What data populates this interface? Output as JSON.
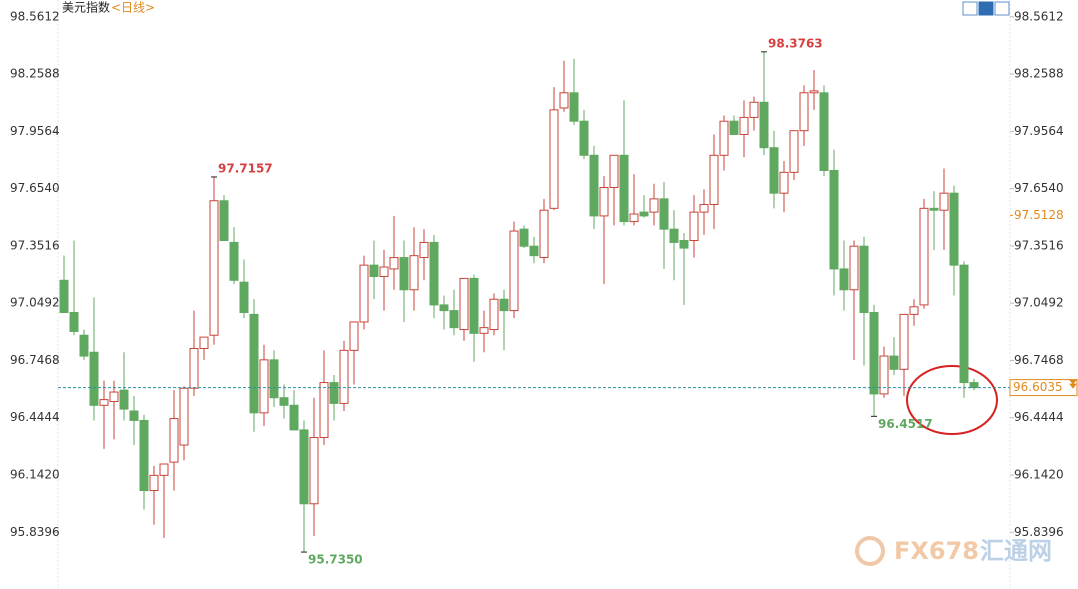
{
  "chart_data": {
    "type": "candlestick",
    "title": "美元指数",
    "subtitle": "<日线>",
    "ylim": [
      95.54,
      98.65
    ],
    "yticks": [
      98.5612,
      98.2588,
      97.9564,
      {
        "value": 97.654,
        "label": "97.6540"
      },
      97.3516,
      97.0492,
      96.7468,
      96.4444,
      {
        "value": 96.142,
        "label": "96.1420"
      },
      95.8396
    ],
    "up_color": "#c8433a",
    "down_color": "#5fa85f",
    "series": [
      {
        "open": [
          97.17,
          97.0,
          96.88,
          96.79,
          96.51,
          96.53,
          96.59,
          96.48,
          96.43,
          96.06,
          96.14,
          96.21,
          96.3,
          96.6,
          96.81,
          96.88,
          97.59,
          97.37,
          97.16,
          96.99,
          96.47,
          96.75,
          96.55,
          96.51,
          96.38,
          95.99,
          96.34,
          96.63,
          96.52,
          96.8,
          96.95,
          97.25,
          97.19,
          97.23,
          97.29,
          97.12,
          97.29,
          97.37,
          97.04,
          97.01,
          96.91,
          97.18,
          96.89,
          96.91,
          97.07,
          97.01,
          97.44,
          97.35,
          97.29,
          97.55,
          98.08,
          98.16,
          98.01,
          97.83,
          97.51,
          97.66,
          97.83,
          97.48,
          97.53,
          97.53,
          97.6,
          97.44,
          97.38,
          97.38,
          97.53,
          97.57,
          97.83,
          98.01,
          97.94,
          98.03,
          98.11,
          97.87,
          97.63,
          97.74,
          97.96,
          98.16,
          98.16,
          97.75,
          97.23,
          97.12,
          97.35,
          97.0,
          96.57,
          96.77,
          96.7,
          96.99,
          97.04,
          97.55,
          97.54,
          97.63,
          97.25,
          96.63
        ],
        "high": [
          97.3,
          97.38,
          96.91,
          97.08,
          96.64,
          96.64,
          96.79,
          96.56,
          96.46,
          96.19,
          96.2,
          96.59,
          96.61,
          97.01,
          96.87,
          97.7157,
          97.62,
          97.45,
          97.28,
          97.07,
          96.83,
          96.8,
          96.62,
          96.59,
          96.43,
          96.55,
          96.8,
          96.67,
          96.85,
          96.95,
          97.3,
          97.38,
          97.33,
          97.51,
          97.38,
          97.45,
          97.44,
          97.41,
          97.09,
          97.12,
          97.18,
          97.2,
          97.01,
          97.1,
          97.12,
          97.48,
          97.46,
          97.4,
          97.6,
          98.19,
          98.33,
          98.34,
          98.07,
          97.88,
          97.72,
          97.83,
          98.12,
          97.73,
          97.62,
          97.68,
          97.69,
          97.54,
          97.42,
          97.62,
          97.65,
          97.94,
          98.04,
          98.04,
          98.12,
          98.14,
          98.3763,
          97.96,
          97.8,
          97.96,
          98.2,
          98.28,
          98.2,
          97.86,
          97.38,
          97.38,
          97.4,
          97.04,
          96.82,
          96.87,
          96.99,
          97.07,
          97.6,
          97.64,
          97.76,
          97.67,
          97.27,
          96.65
        ],
        "low": [
          97.01,
          96.88,
          96.75,
          96.43,
          96.28,
          96.33,
          96.43,
          96.3,
          95.96,
          95.88,
          95.81,
          96.06,
          96.22,
          96.56,
          96.75,
          96.83,
          97.38,
          97.15,
          96.97,
          96.37,
          96.4,
          96.5,
          96.44,
          96.38,
          95.735,
          95.82,
          96.3,
          96.43,
          96.48,
          96.62,
          96.91,
          97.07,
          97.01,
          97.12,
          96.95,
          97.01,
          97.17,
          96.97,
          96.91,
          96.88,
          96.85,
          96.74,
          96.79,
          96.88,
          96.8,
          96.97,
          97.34,
          97.26,
          97.26,
          97.54,
          98.06,
          97.99,
          97.81,
          97.44,
          97.15,
          97.46,
          97.46,
          97.46,
          97.5,
          97.46,
          97.23,
          97.17,
          97.04,
          97.29,
          97.41,
          97.44,
          97.75,
          97.94,
          97.82,
          97.96,
          97.83,
          97.55,
          97.53,
          97.7,
          97.88,
          98.07,
          97.72,
          97.09,
          97.01,
          96.75,
          96.72,
          96.4517,
          96.55,
          96.67,
          96.56,
          96.93,
          97.02,
          97.33,
          97.33,
          97.09,
          96.55,
          96.59
        ],
        "close": [
          97.0,
          96.9,
          96.77,
          96.51,
          96.54,
          96.58,
          96.49,
          96.43,
          96.06,
          96.14,
          96.2,
          96.44,
          96.6,
          96.81,
          96.87,
          97.59,
          97.38,
          97.17,
          97.0,
          96.47,
          96.75,
          96.55,
          96.51,
          96.38,
          95.99,
          96.34,
          96.63,
          96.52,
          96.8,
          96.95,
          97.25,
          97.19,
          97.24,
          97.29,
          97.12,
          97.3,
          97.37,
          97.04,
          97.01,
          96.92,
          97.18,
          96.89,
          96.92,
          97.07,
          97.01,
          97.43,
          97.35,
          97.3,
          97.54,
          98.07,
          98.16,
          98.01,
          97.83,
          97.51,
          97.66,
          97.83,
          97.48,
          97.52,
          97.51,
          97.6,
          97.44,
          97.37,
          97.34,
          97.53,
          97.57,
          97.83,
          98.01,
          97.94,
          98.03,
          98.11,
          97.87,
          97.63,
          97.74,
          97.96,
          98.16,
          98.17,
          97.75,
          97.23,
          97.12,
          97.35,
          97.0,
          96.57,
          96.77,
          96.7,
          96.99,
          97.03,
          97.55,
          97.54,
          97.63,
          97.25,
          96.63,
          96.6035
        ]
      }
    ],
    "high_annotations": [
      {
        "value": 97.7157,
        "label": "97.7157"
      },
      {
        "value": 98.3763,
        "label": "98.3763"
      }
    ],
    "low_annotations": [
      {
        "value": 95.735,
        "label": "95.7350"
      },
      {
        "value": 96.4517,
        "label": "96.4517"
      }
    ],
    "last_price": {
      "value": 96.6035,
      "label": "96.6035"
    },
    "reference_price": {
      "value": 97.5128,
      "label": "97.5128"
    },
    "watermark": [
      "FX678",
      "汇通网"
    ]
  }
}
